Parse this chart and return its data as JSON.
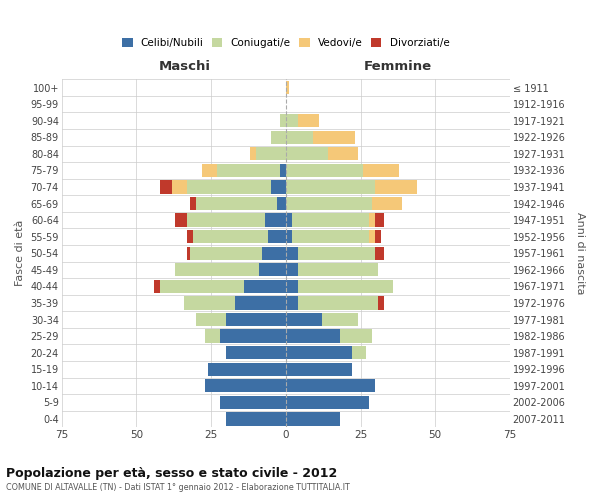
{
  "age_groups": [
    "0-4",
    "5-9",
    "10-14",
    "15-19",
    "20-24",
    "25-29",
    "30-34",
    "35-39",
    "40-44",
    "45-49",
    "50-54",
    "55-59",
    "60-64",
    "65-69",
    "70-74",
    "75-79",
    "80-84",
    "85-89",
    "90-94",
    "95-99",
    "100+"
  ],
  "birth_years": [
    "2007-2011",
    "2002-2006",
    "1997-2001",
    "1992-1996",
    "1987-1991",
    "1982-1986",
    "1977-1981",
    "1972-1976",
    "1967-1971",
    "1962-1966",
    "1957-1961",
    "1952-1956",
    "1947-1951",
    "1942-1946",
    "1937-1941",
    "1932-1936",
    "1927-1931",
    "1922-1926",
    "1917-1921",
    "1912-1916",
    "≤ 1911"
  ],
  "maschi": {
    "celibi": [
      20,
      22,
      27,
      26,
      20,
      22,
      20,
      17,
      14,
      9,
      8,
      6,
      7,
      3,
      5,
      2,
      0,
      0,
      0,
      0,
      0
    ],
    "coniugati": [
      0,
      0,
      0,
      0,
      0,
      5,
      10,
      17,
      28,
      28,
      24,
      25,
      26,
      27,
      28,
      21,
      10,
      5,
      2,
      0,
      0
    ],
    "vedovi": [
      0,
      0,
      0,
      0,
      0,
      0,
      0,
      0,
      0,
      0,
      0,
      0,
      0,
      0,
      5,
      5,
      2,
      0,
      0,
      0,
      0
    ],
    "divorziati": [
      0,
      0,
      0,
      0,
      0,
      0,
      0,
      0,
      2,
      0,
      1,
      2,
      4,
      2,
      4,
      0,
      0,
      0,
      0,
      0,
      0
    ]
  },
  "femmine": {
    "nubili": [
      18,
      28,
      30,
      22,
      22,
      18,
      12,
      4,
      4,
      4,
      4,
      2,
      2,
      0,
      0,
      0,
      0,
      0,
      0,
      0,
      0
    ],
    "coniugate": [
      0,
      0,
      0,
      0,
      5,
      11,
      12,
      27,
      32,
      27,
      26,
      26,
      26,
      29,
      30,
      26,
      14,
      9,
      4,
      0,
      0
    ],
    "vedove": [
      0,
      0,
      0,
      0,
      0,
      0,
      0,
      0,
      0,
      0,
      0,
      2,
      2,
      10,
      14,
      12,
      10,
      14,
      7,
      0,
      1
    ],
    "divorziate": [
      0,
      0,
      0,
      0,
      0,
      0,
      0,
      2,
      0,
      0,
      3,
      2,
      3,
      0,
      0,
      0,
      0,
      0,
      0,
      0,
      0
    ]
  },
  "colors": {
    "celibi": "#3d6fa5",
    "coniugati": "#c5d8a0",
    "vedovi": "#f5c878",
    "divorziati": "#c0392b"
  },
  "xlim": 75,
  "title": "Popolazione per età, sesso e stato civile - 2012",
  "subtitle": "COMUNE DI ALTAVALLE (TN) - Dati ISTAT 1° gennaio 2012 - Elaborazione TUTTITALIA.IT",
  "ylabel_left": "Fasce di età",
  "ylabel_right": "Anni di nascita",
  "xlabel_left": "Maschi",
  "xlabel_right": "Femmine"
}
